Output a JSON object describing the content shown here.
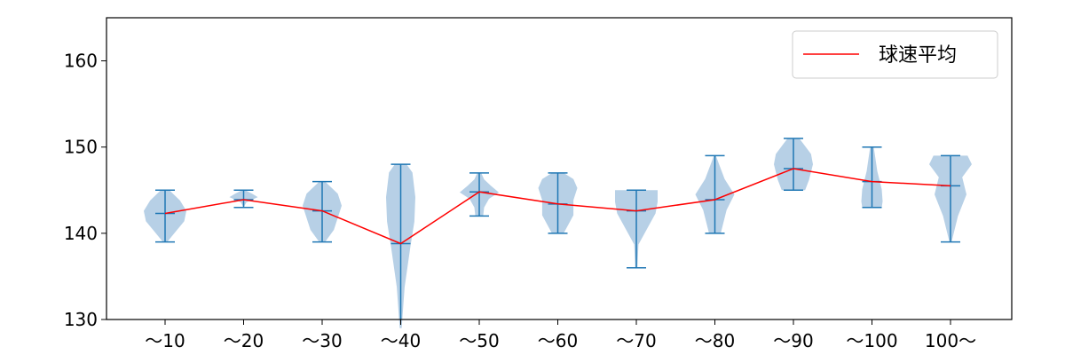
{
  "chart_data": {
    "type": "violin",
    "title": "",
    "xlabel": "",
    "ylabel": "",
    "ylim": [
      130,
      165
    ],
    "yticks": [
      130,
      140,
      150,
      160
    ],
    "grid": false,
    "legend_position": "top-right",
    "categories": [
      "～10",
      "～20",
      "～30",
      "～40",
      "～50",
      "～60",
      "～70",
      "～80",
      "～90",
      "～100",
      "100～"
    ],
    "violins": [
      {
        "min": 139,
        "max": 145
      },
      {
        "min": 143,
        "max": 145
      },
      {
        "min": 139,
        "max": 146
      },
      {
        "min": 129,
        "max": 148
      },
      {
        "min": 142,
        "max": 147
      },
      {
        "min": 140,
        "max": 147
      },
      {
        "min": 136,
        "max": 145
      },
      {
        "min": 140,
        "max": 149
      },
      {
        "min": 145,
        "max": 151
      },
      {
        "min": 143,
        "max": 150
      },
      {
        "min": 139,
        "max": 149
      }
    ],
    "series": [
      {
        "name": "球速平均",
        "values": [
          142.3,
          143.9,
          142.6,
          138.8,
          144.8,
          143.4,
          142.6,
          143.9,
          147.5,
          146.0,
          145.5
        ]
      }
    ],
    "colors": {
      "violin_fill": "#aac8e2",
      "violin_line": "#1f77b4",
      "mean_line": "#ff0000",
      "axis": "#000000"
    }
  }
}
